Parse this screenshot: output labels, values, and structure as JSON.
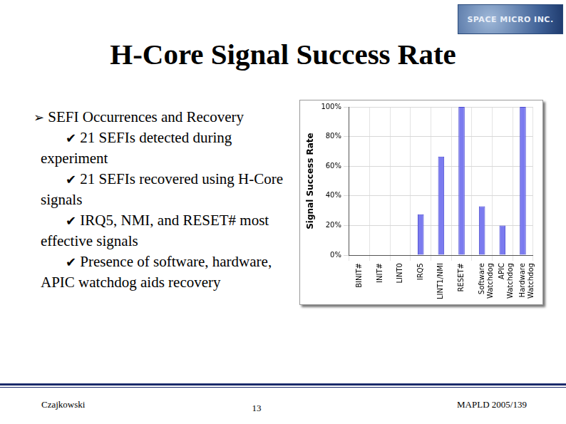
{
  "slide": {
    "logo": "SPACE MICRO INC.",
    "title": "H-Core Signal Success Rate",
    "bullets": [
      {
        "bullet": "➢",
        "text": "SEFI Occurrences and Recovery",
        "items": [
          {
            "bullet": "✔",
            "text": "21 SEFIs detected during experiment"
          },
          {
            "bullet": "✔",
            "text": "21 SEFIs recovered using H-Core signals"
          },
          {
            "bullet": "✔",
            "text": "IRQ5, NMI, and RESET# most effective signals"
          },
          {
            "bullet": "✔",
            "text": "Presence of software, hardware, APIC watchdog aids recovery"
          }
        ]
      }
    ],
    "footer": {
      "left": "Czajkowski",
      "center": "13",
      "right": "MAPLD 2005/139"
    }
  },
  "chart_data": {
    "type": "bar",
    "y_label": "Signal Success Rate",
    "categories": [
      "BINIT#",
      "INIT#",
      "LINT0",
      "IRQ5",
      "LINT1/NMI",
      "RESET#",
      "Software Watchdog",
      "APIC Watchdog",
      "Hardware Watchdog"
    ],
    "values": [
      0,
      0,
      0,
      27.5,
      66.5,
      100,
      33,
      20,
      100
    ],
    "color": "#7b7bef",
    "ylim": [
      0,
      100
    ],
    "yticks": [
      {
        "value": 0,
        "label": "0%"
      },
      {
        "value": 20,
        "label": "20%"
      },
      {
        "value": 40,
        "label": "40%"
      },
      {
        "value": 60,
        "label": "60%"
      },
      {
        "value": 80,
        "label": "80%"
      },
      {
        "value": 100,
        "label": "100%"
      }
    ],
    "grid": true
  }
}
